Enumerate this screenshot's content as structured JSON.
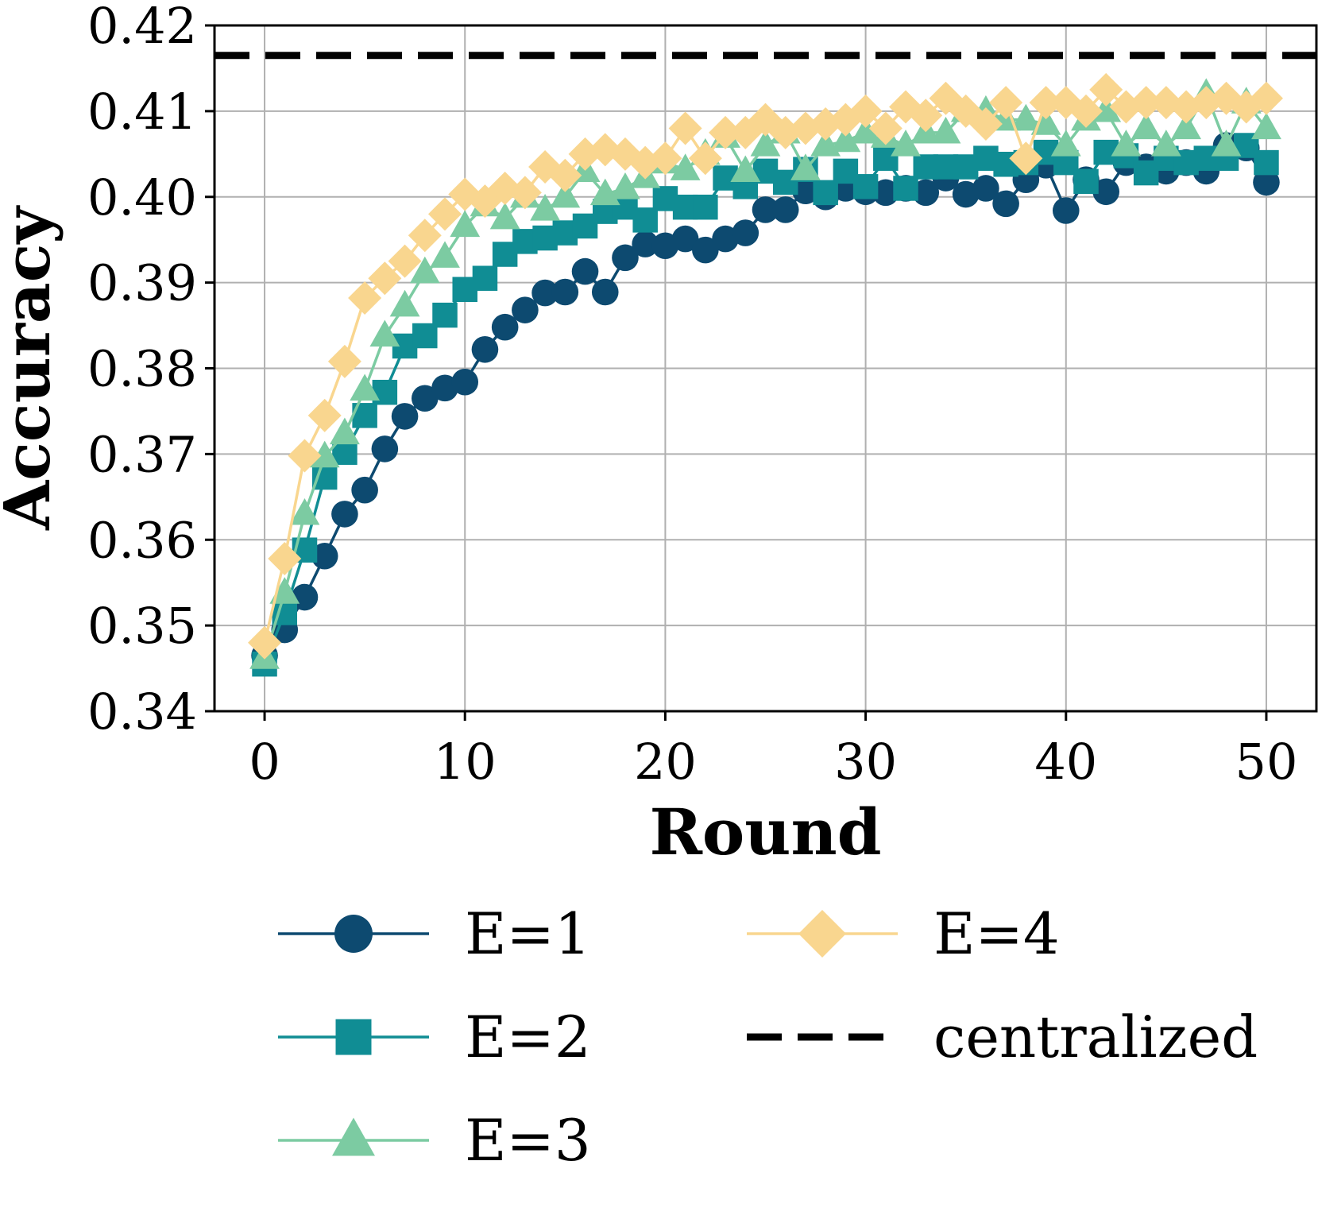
{
  "chart_data": {
    "type": "line",
    "title": "",
    "xlabel": "Round",
    "ylabel": "Accuracy",
    "xlim": [
      -2.5,
      52.5
    ],
    "ylim": [
      0.34,
      0.42
    ],
    "xticks": [
      0,
      10,
      20,
      30,
      40,
      50
    ],
    "yticks": [
      0.34,
      0.35,
      0.36,
      0.37,
      0.38,
      0.39,
      0.4,
      0.41,
      0.42
    ],
    "xtick_labels": [
      "0",
      "10",
      "20",
      "30",
      "40",
      "50"
    ],
    "ytick_labels": [
      "0.34",
      "0.35",
      "0.36",
      "0.37",
      "0.38",
      "0.39",
      "0.40",
      "0.41",
      "0.42"
    ],
    "grid": true,
    "legend_position": "below",
    "x": [
      0,
      1,
      2,
      3,
      4,
      5,
      6,
      7,
      8,
      9,
      10,
      11,
      12,
      13,
      14,
      15,
      16,
      17,
      18,
      19,
      20,
      21,
      22,
      23,
      24,
      25,
      26,
      27,
      28,
      29,
      30,
      31,
      32,
      33,
      34,
      35,
      36,
      37,
      38,
      39,
      40,
      41,
      42,
      43,
      44,
      45,
      46,
      47,
      48,
      49,
      50
    ],
    "series": [
      {
        "name": "E=1",
        "marker": "circle",
        "color": "#0d4a70",
        "values": [
          0.3465,
          0.3495,
          0.3533,
          0.3581,
          0.363,
          0.3658,
          0.3706,
          0.3744,
          0.3765,
          0.3777,
          0.3784,
          0.3822,
          0.3848,
          0.3868,
          0.3888,
          0.3889,
          0.3913,
          0.3889,
          0.3929,
          0.3945,
          0.3943,
          0.3951,
          0.3938,
          0.3951,
          0.3958,
          0.3985,
          0.3985,
          0.4007,
          0.4,
          0.401,
          0.4006,
          0.4005,
          0.401,
          0.4005,
          0.4022,
          0.4003,
          0.401,
          0.3992,
          0.402,
          0.4037,
          0.3984,
          0.402,
          0.4006,
          0.404,
          0.4035,
          0.403,
          0.404,
          0.403,
          0.406,
          0.4057,
          0.4017
        ]
      },
      {
        "name": "E=2",
        "marker": "square",
        "color": "#108d94",
        "values": [
          0.3455,
          0.3515,
          0.3588,
          0.3673,
          0.3702,
          0.3745,
          0.3772,
          0.3826,
          0.3838,
          0.3862,
          0.3892,
          0.3905,
          0.3933,
          0.3948,
          0.3952,
          0.3958,
          0.3966,
          0.3983,
          0.3988,
          0.3973,
          0.3998,
          0.3988,
          0.3988,
          0.4022,
          0.4012,
          0.403,
          0.4017,
          0.4032,
          0.4005,
          0.403,
          0.4012,
          0.4045,
          0.401,
          0.4035,
          0.4035,
          0.4035,
          0.4045,
          0.4038,
          0.404,
          0.4052,
          0.404,
          0.4018,
          0.4052,
          0.4048,
          0.4028,
          0.4045,
          0.404,
          0.4045,
          0.4045,
          0.406,
          0.404
        ]
      },
      {
        "name": "E=3",
        "marker": "triangle",
        "color": "#7ccba2",
        "values": [
          0.3462,
          0.3538,
          0.363,
          0.3697,
          0.3724,
          0.3775,
          0.3838,
          0.3873,
          0.3912,
          0.393,
          0.3966,
          0.399,
          0.3975,
          0.4,
          0.3985,
          0.4,
          0.403,
          0.4003,
          0.401,
          0.4023,
          0.404,
          0.4032,
          0.405,
          0.407,
          0.403,
          0.406,
          0.4075,
          0.4032,
          0.406,
          0.4065,
          0.4075,
          0.407,
          0.406,
          0.4075,
          0.4075,
          0.41,
          0.41,
          0.409,
          0.409,
          0.4085,
          0.406,
          0.409,
          0.41,
          0.406,
          0.408,
          0.406,
          0.408,
          0.412,
          0.406,
          0.411,
          0.408
        ]
      },
      {
        "name": "E=4",
        "marker": "diamond",
        "color": "#f9d68f",
        "values": [
          0.348,
          0.3578,
          0.3698,
          0.3745,
          0.3808,
          0.3882,
          0.3905,
          0.3925,
          0.3955,
          0.398,
          0.4003,
          0.3995,
          0.401,
          0.4005,
          0.4035,
          0.4025,
          0.405,
          0.4055,
          0.405,
          0.404,
          0.4045,
          0.408,
          0.4045,
          0.4075,
          0.4075,
          0.409,
          0.4075,
          0.408,
          0.4085,
          0.409,
          0.41,
          0.408,
          0.4105,
          0.4095,
          0.4115,
          0.41,
          0.4085,
          0.411,
          0.4045,
          0.411,
          0.411,
          0.41,
          0.4125,
          0.4105,
          0.411,
          0.411,
          0.4105,
          0.411,
          0.4115,
          0.4105,
          0.4115
        ]
      },
      {
        "name": "centralized",
        "style": "dashed",
        "color": "#000000",
        "value": 0.4165
      }
    ]
  }
}
